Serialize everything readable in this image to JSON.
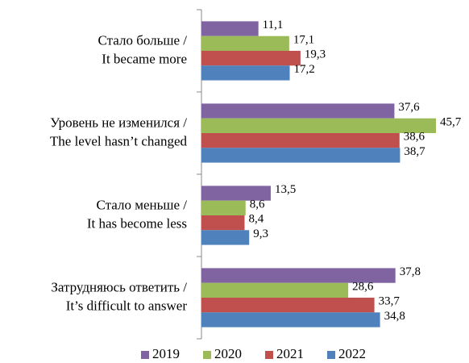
{
  "chart_data": {
    "type": "hbar",
    "categories": [
      [
        "Стало больше /",
        "It became more"
      ],
      [
        "Уровень не изменился /",
        "The level hasn’t changed"
      ],
      [
        "Стало меньше /",
        "It has become less"
      ],
      [
        "Затрудняюсь ответить /",
        "It’s difficult to answer"
      ]
    ],
    "series": [
      {
        "name": "2019",
        "color": "#8064a2",
        "values": [
          11.1,
          37.6,
          13.5,
          37.8
        ],
        "value_labels": [
          "11,1",
          "37,6",
          "13,5",
          "37,8"
        ]
      },
      {
        "name": "2020",
        "color": "#9bbb59",
        "values": [
          17.1,
          45.7,
          8.6,
          28.6
        ],
        "value_labels": [
          "17,1",
          "45,7",
          "8,6",
          "28,6"
        ]
      },
      {
        "name": "2021",
        "color": "#c0504d",
        "values": [
          19.3,
          38.6,
          8.4,
          33.7
        ],
        "value_labels": [
          "19,3",
          "38,6",
          "8,4",
          "33,7"
        ]
      },
      {
        "name": "2022",
        "color": "#4f81bd",
        "values": [
          17.2,
          38.7,
          9.3,
          34.8
        ],
        "value_labels": [
          "17,2",
          "38,7",
          "9,3",
          "34,8"
        ]
      }
    ]
  }
}
